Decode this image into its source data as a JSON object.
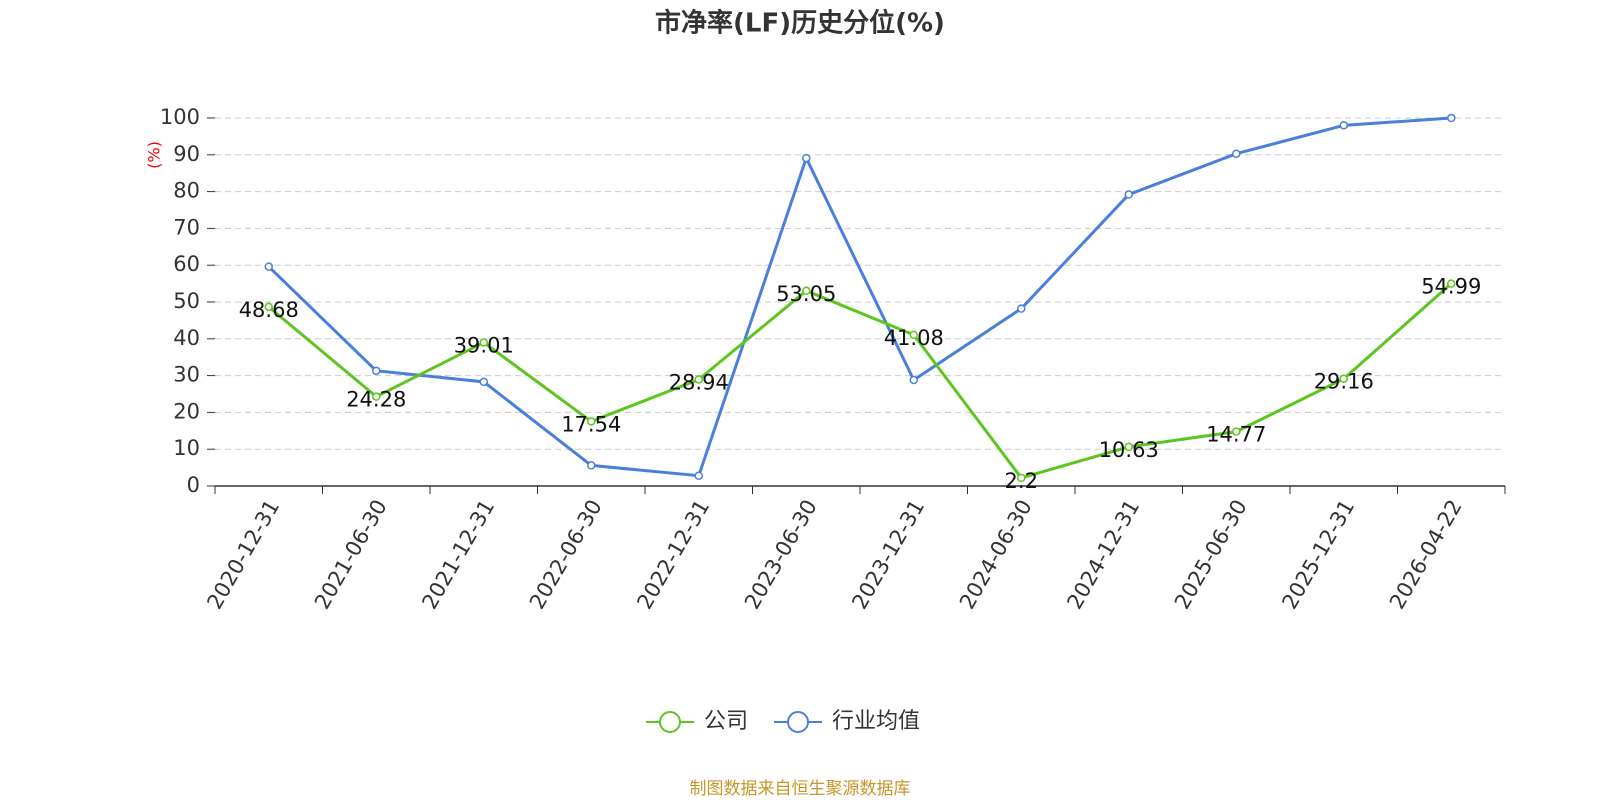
{
  "chart_data": {
    "type": "line",
    "title": "市净率(LF)历史分位(%)",
    "y_label": "(%)",
    "note": "制图数据来自恒生聚源数据库",
    "categories": [
      "2020-12-31",
      "2021-06-30",
      "2021-12-31",
      "2022-06-30",
      "2022-12-31",
      "2023-06-30",
      "2023-12-31",
      "2024-06-30",
      "2024-12-31",
      "2025-06-30",
      "2025-12-31",
      "2026-04-22"
    ],
    "series": [
      {
        "name": "公司",
        "color": "#5cc51f",
        "values": [
          48.68,
          24.28,
          39.01,
          17.54,
          28.94,
          53.05,
          41.08,
          2.2,
          10.63,
          14.77,
          29.16,
          54.99
        ]
      },
      {
        "name": "行业均值",
        "color": "#4a7fdc",
        "values": [
          59.6,
          31.3,
          28.3,
          5.6,
          2.8,
          89.1,
          28.8,
          48.2,
          79.2,
          90.3,
          98.0,
          100
        ]
      }
    ],
    "ylim": [
      0,
      100
    ],
    "yticks": [
      0,
      10,
      20,
      30,
      40,
      50,
      60,
      70,
      80,
      90,
      100
    ],
    "grid": true
  }
}
